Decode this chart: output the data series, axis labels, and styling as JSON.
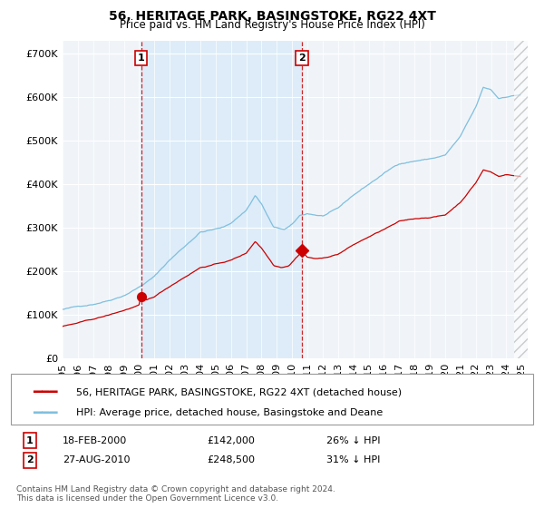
{
  "title": "56, HERITAGE PARK, BASINGSTOKE, RG22 4XT",
  "subtitle": "Price paid vs. HM Land Registry's House Price Index (HPI)",
  "hpi_color": "#7fbfdf",
  "hpi_fill_color": "#d6eaf8",
  "price_color": "#cc0000",
  "marker_color": "#cc0000",
  "vline_color": "#cc0000",
  "background_color": "#f0f4f8",
  "grid_color": "#ffffff",
  "legend_label_red": "56, HERITAGE PARK, BASINGSTOKE, RG22 4XT (detached house)",
  "legend_label_blue": "HPI: Average price, detached house, Basingstoke and Deane",
  "transaction1_date": "18-FEB-2000",
  "transaction1_price": "£142,000",
  "transaction1_pct": "26% ↓ HPI",
  "transaction1_year": 2000.13,
  "transaction1_value": 142000,
  "transaction2_date": "27-AUG-2010",
  "transaction2_price": "£248,500",
  "transaction2_pct": "31% ↓ HPI",
  "transaction2_year": 2010.65,
  "transaction2_value": 248500,
  "footer": "Contains HM Land Registry data © Crown copyright and database right 2024.\nThis data is licensed under the Open Government Licence v3.0."
}
